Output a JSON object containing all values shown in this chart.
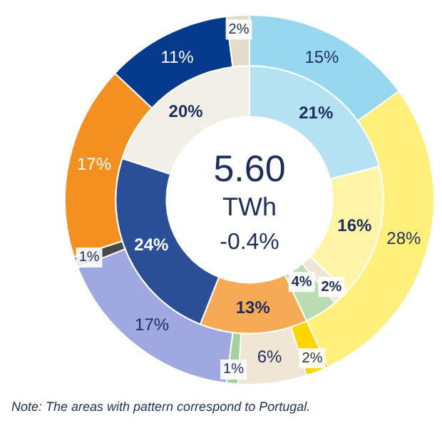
{
  "chart_data": {
    "type": "donut",
    "legend": false,
    "series": [
      {
        "values": [
          15,
          28,
          2,
          6,
          1,
          17,
          1,
          17,
          11,
          2
        ],
        "colors": [
          "#97d8ef",
          "#fef07a",
          "#ffd500",
          "#efe6d6",
          "#a3d39c",
          "#9fa8e0",
          "#4a4a4a",
          "#f39020",
          "#063a8c",
          "#e2dccb"
        ],
        "value_labels": [
          "15%",
          "28%",
          "2%",
          "6%",
          "1%",
          "17%",
          "1%",
          "17%",
          "11%",
          "2%"
        ]
      },
      {
        "values": [
          21,
          16,
          2,
          4,
          13,
          24,
          20
        ],
        "colors": [
          "#b5e2f2",
          "#fff4a8",
          "#efe6d6",
          "#b9dcb2",
          "#f6aa55",
          "#2a4f96",
          "#f2efe6"
        ],
        "value_labels": [
          "21%",
          "16%",
          "2%",
          "4%",
          "13%",
          "24%",
          "20%"
        ]
      }
    ],
    "annotations": [
      "5.60",
      "TWh",
      "-0.4%",
      "Note: The  areas with pattern correspond  to Portugal."
    ]
  }
}
